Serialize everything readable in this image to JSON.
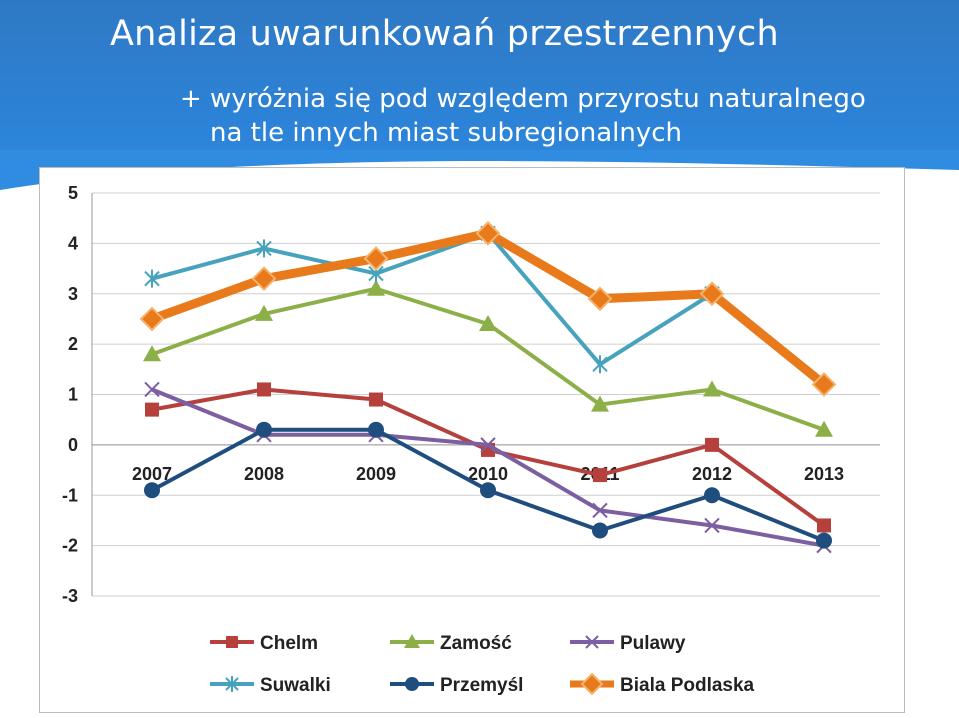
{
  "slide": {
    "title": "Analiza uwarunkowań przestrzennych",
    "subtitle_line1": "+ wyróżnia się pod względem przyrostu naturalnego",
    "subtitle_line2": "na tle innych miast subregionalnych",
    "header_color": "#2f80d0"
  },
  "chart_data": {
    "type": "line",
    "categories": [
      "2007",
      "2008",
      "2009",
      "2010",
      "2011",
      "2012",
      "2013"
    ],
    "ylim": [
      -3,
      5
    ],
    "yticks": [
      5,
      4,
      3,
      2,
      1,
      0,
      -1,
      -2,
      -3
    ],
    "grid": true,
    "legend_position": "bottom",
    "series": [
      {
        "name": "Chelm",
        "color": "#b6403c",
        "marker": "square",
        "values": [
          0.7,
          1.1,
          0.9,
          -0.1,
          -0.6,
          0.0,
          -1.6
        ]
      },
      {
        "name": "Zamość",
        "color": "#8caf48",
        "marker": "triangle",
        "values": [
          1.8,
          2.6,
          3.1,
          2.4,
          0.8,
          1.1,
          0.3
        ]
      },
      {
        "name": "Pulawy",
        "color": "#7b5fa0",
        "marker": "x",
        "values": [
          1.1,
          0.2,
          0.2,
          0.0,
          -1.3,
          -1.6,
          -2.0
        ]
      },
      {
        "name": "Suwalki",
        "color": "#47a3bd",
        "marker": "star",
        "values": [
          3.3,
          3.9,
          3.4,
          4.2,
          1.6,
          3.0,
          null
        ]
      },
      {
        "name": "Przemyśl",
        "color": "#1f4e7e",
        "marker": "circle",
        "values": [
          -0.9,
          0.3,
          0.3,
          -0.9,
          -1.7,
          -1.0,
          -1.9
        ]
      },
      {
        "name": "Biala Podlaska",
        "color": "#e87a1c",
        "marker": "diamond",
        "values": [
          2.5,
          3.3,
          3.7,
          4.2,
          2.9,
          3.0,
          1.2
        ]
      }
    ]
  }
}
